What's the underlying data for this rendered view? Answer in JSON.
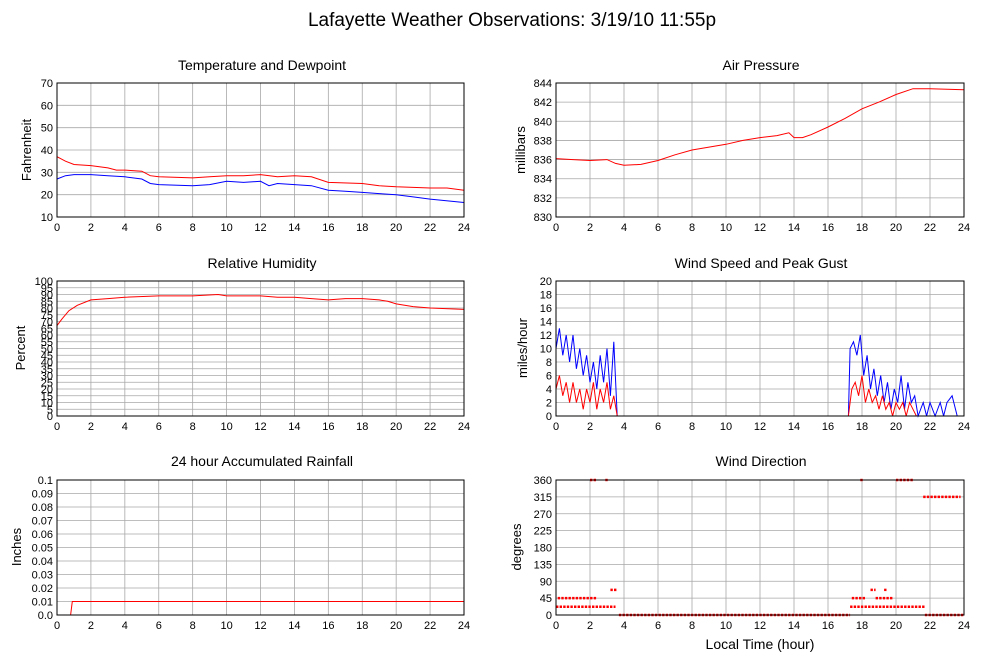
{
  "page": {
    "title": "Lafayette Weather Observations: 3/19/10 11:55p",
    "xlabel": "Local Time (hour)"
  },
  "chart_data": [
    {
      "id": "temp",
      "type": "line",
      "title": "Temperature and Dewpoint",
      "ylabel": "Fahrenheit",
      "xlim": [
        0,
        24
      ],
      "ylim": [
        10,
        70
      ],
      "yticks": [
        10,
        20,
        30,
        40,
        50,
        60,
        70
      ],
      "xticks": [
        0,
        2,
        4,
        6,
        8,
        10,
        12,
        14,
        16,
        18,
        20,
        22,
        24
      ],
      "grid": true,
      "series": [
        {
          "color": "#ff0000",
          "points": [
            [
              0,
              37
            ],
            [
              0.5,
              35
            ],
            [
              1,
              33.5
            ],
            [
              2,
              33
            ],
            [
              3,
              32
            ],
            [
              3.5,
              31
            ],
            [
              4,
              31
            ],
            [
              5,
              30.5
            ],
            [
              5.5,
              28.5
            ],
            [
              6,
              28
            ],
            [
              8,
              27.5
            ],
            [
              9,
              28
            ],
            [
              10,
              28.5
            ],
            [
              11,
              28.5
            ],
            [
              12,
              29
            ],
            [
              13,
              28
            ],
            [
              14,
              28.5
            ],
            [
              15,
              28
            ],
            [
              16,
              25.5
            ],
            [
              18,
              25
            ],
            [
              19,
              24
            ],
            [
              20,
              23.5
            ],
            [
              22,
              23
            ],
            [
              23,
              23
            ],
            [
              24,
              22
            ]
          ]
        },
        {
          "color": "#0000ff",
          "points": [
            [
              0,
              27
            ],
            [
              0.5,
              28.5
            ],
            [
              1,
              29
            ],
            [
              2,
              29
            ],
            [
              3,
              28.5
            ],
            [
              4,
              28
            ],
            [
              5,
              27
            ],
            [
              5.5,
              25
            ],
            [
              6,
              24.5
            ],
            [
              8,
              24
            ],
            [
              9,
              24.5
            ],
            [
              10,
              26
            ],
            [
              11,
              25.5
            ],
            [
              12,
              26
            ],
            [
              12.5,
              24
            ],
            [
              13,
              25
            ],
            [
              15,
              24
            ],
            [
              16,
              22
            ],
            [
              17,
              21.5
            ],
            [
              18,
              21
            ],
            [
              19,
              20.5
            ],
            [
              20,
              20
            ],
            [
              21,
              19
            ],
            [
              22,
              18
            ],
            [
              24,
              16.5
            ]
          ]
        }
      ]
    },
    {
      "id": "pressure",
      "type": "line",
      "title": "Air Pressure",
      "ylabel": "millibars",
      "xlim": [
        0,
        24
      ],
      "ylim": [
        830,
        844
      ],
      "yticks": [
        830,
        832,
        834,
        836,
        838,
        840,
        842,
        844
      ],
      "xticks": [
        0,
        2,
        4,
        6,
        8,
        10,
        12,
        14,
        16,
        18,
        20,
        22,
        24
      ],
      "grid": true,
      "series": [
        {
          "color": "#ff0000",
          "points": [
            [
              0,
              836.1
            ],
            [
              1,
              836
            ],
            [
              2,
              835.9
            ],
            [
              3,
              836
            ],
            [
              3.5,
              835.6
            ],
            [
              4,
              835.4
            ],
            [
              5,
              835.5
            ],
            [
              6,
              835.9
            ],
            [
              7,
              836.5
            ],
            [
              8,
              837
            ],
            [
              9,
              837.3
            ],
            [
              10,
              837.6
            ],
            [
              11,
              838
            ],
            [
              12,
              838.3
            ],
            [
              13,
              838.5
            ],
            [
              13.7,
              838.8
            ],
            [
              14,
              838.3
            ],
            [
              14.5,
              838.3
            ],
            [
              15,
              838.6
            ],
            [
              16,
              839.4
            ],
            [
              17,
              840.3
            ],
            [
              18,
              841.3
            ],
            [
              19,
              842
            ],
            [
              20,
              842.8
            ],
            [
              21,
              843.4
            ],
            [
              22,
              843.4
            ],
            [
              24,
              843.3
            ]
          ]
        }
      ]
    },
    {
      "id": "humidity",
      "type": "line",
      "title": "Relative Humidity",
      "ylabel": "Percent",
      "xlim": [
        0,
        24
      ],
      "ylim": [
        0,
        100
      ],
      "yticks": [
        0,
        5,
        10,
        15,
        20,
        25,
        30,
        35,
        40,
        45,
        50,
        55,
        60,
        65,
        70,
        75,
        80,
        85,
        90,
        95,
        100
      ],
      "xticks": [
        0,
        2,
        4,
        6,
        8,
        10,
        12,
        14,
        16,
        18,
        20,
        22,
        24
      ],
      "grid": true,
      "series": [
        {
          "color": "#ff0000",
          "points": [
            [
              0,
              67
            ],
            [
              0.3,
              72
            ],
            [
              0.7,
              78
            ],
            [
              1.2,
              82
            ],
            [
              2,
              86
            ],
            [
              3,
              87
            ],
            [
              4,
              88
            ],
            [
              6,
              89
            ],
            [
              8,
              89
            ],
            [
              9.5,
              90
            ],
            [
              10,
              89
            ],
            [
              12,
              89
            ],
            [
              13,
              88
            ],
            [
              14,
              88
            ],
            [
              15,
              87
            ],
            [
              16,
              86
            ],
            [
              17,
              87
            ],
            [
              18,
              87
            ],
            [
              19,
              86
            ],
            [
              19.5,
              85
            ],
            [
              20,
              83
            ],
            [
              21,
              81
            ],
            [
              22,
              80
            ],
            [
              24,
              79
            ]
          ]
        }
      ]
    },
    {
      "id": "wind",
      "type": "line",
      "title": "Wind Speed and Peak Gust",
      "ylabel": "miles/hour",
      "xlim": [
        0,
        24
      ],
      "ylim": [
        0,
        20
      ],
      "yticks": [
        0,
        2,
        4,
        6,
        8,
        10,
        12,
        14,
        16,
        18,
        20
      ],
      "xticks": [
        0,
        2,
        4,
        6,
        8,
        10,
        12,
        14,
        16,
        18,
        20,
        22,
        24
      ],
      "grid": true,
      "series": [
        {
          "color": "#0000ff",
          "points": [
            [
              0,
              10
            ],
            [
              0.2,
              13
            ],
            [
              0.4,
              9
            ],
            [
              0.6,
              12
            ],
            [
              0.8,
              8
            ],
            [
              1,
              12
            ],
            [
              1.2,
              7
            ],
            [
              1.4,
              10
            ],
            [
              1.6,
              6
            ],
            [
              1.8,
              9
            ],
            [
              2,
              5
            ],
            [
              2.2,
              8
            ],
            [
              2.4,
              4
            ],
            [
              2.6,
              9
            ],
            [
              2.8,
              5
            ],
            [
              3,
              10
            ],
            [
              3.2,
              3
            ],
            [
              3.4,
              11
            ],
            [
              3.6,
              0
            ],
            [
              4,
              0
            ],
            [
              10,
              0
            ],
            [
              17.2,
              0
            ],
            [
              17.3,
              10
            ],
            [
              17.5,
              11
            ],
            [
              17.7,
              9
            ],
            [
              17.9,
              12
            ],
            [
              18.1,
              6
            ],
            [
              18.3,
              9
            ],
            [
              18.5,
              4
            ],
            [
              18.7,
              7
            ],
            [
              18.9,
              3
            ],
            [
              19.1,
              6
            ],
            [
              19.3,
              2
            ],
            [
              19.5,
              5
            ],
            [
              19.7,
              1
            ],
            [
              19.9,
              4
            ],
            [
              20.1,
              2
            ],
            [
              20.3,
              6
            ],
            [
              20.5,
              1
            ],
            [
              20.7,
              5
            ],
            [
              20.9,
              2
            ],
            [
              21.1,
              3
            ],
            [
              21.3,
              0
            ],
            [
              21.6,
              2
            ],
            [
              21.8,
              0
            ],
            [
              22,
              2
            ],
            [
              22.3,
              0
            ],
            [
              22.6,
              2
            ],
            [
              22.8,
              0
            ],
            [
              23,
              2
            ],
            [
              23.3,
              3
            ],
            [
              23.6,
              0
            ]
          ]
        },
        {
          "color": "#ff0000",
          "points": [
            [
              0,
              4
            ],
            [
              0.2,
              6
            ],
            [
              0.4,
              3
            ],
            [
              0.6,
              5
            ],
            [
              0.8,
              2
            ],
            [
              1,
              5
            ],
            [
              1.2,
              2
            ],
            [
              1.4,
              4
            ],
            [
              1.6,
              1
            ],
            [
              1.8,
              4
            ],
            [
              2,
              2
            ],
            [
              2.2,
              5
            ],
            [
              2.4,
              1
            ],
            [
              2.6,
              4
            ],
            [
              2.8,
              2
            ],
            [
              3,
              5
            ],
            [
              3.2,
              1
            ],
            [
              3.4,
              3
            ],
            [
              3.6,
              0
            ],
            [
              17.2,
              0
            ],
            [
              17.4,
              4
            ],
            [
              17.6,
              5
            ],
            [
              17.8,
              3
            ],
            [
              18,
              6
            ],
            [
              18.2,
              2
            ],
            [
              18.4,
              4
            ],
            [
              18.6,
              2
            ],
            [
              18.8,
              3
            ],
            [
              19,
              1
            ],
            [
              19.2,
              3
            ],
            [
              19.4,
              1
            ],
            [
              19.6,
              2
            ],
            [
              19.8,
              0
            ],
            [
              20,
              2
            ],
            [
              20.2,
              1
            ],
            [
              20.4,
              2
            ],
            [
              20.6,
              0
            ],
            [
              20.8,
              2
            ],
            [
              21,
              1
            ],
            [
              21.2,
              0
            ],
            [
              21.5,
              0
            ]
          ]
        }
      ]
    },
    {
      "id": "rain",
      "type": "line",
      "title": "24 hour Accumulated Rainfall",
      "ylabel": "Inches",
      "xlim": [
        0,
        24
      ],
      "ylim": [
        0,
        0.1
      ],
      "yticks": [
        "0.0",
        "0.01",
        "0.02",
        "0.03",
        "0.04",
        "0.05",
        "0.06",
        "0.07",
        "0.08",
        "0.09",
        "0.1"
      ],
      "xticks": [
        0,
        2,
        4,
        6,
        8,
        10,
        12,
        14,
        16,
        18,
        20,
        22,
        24
      ],
      "grid": true,
      "series": [
        {
          "color": "#ff0000",
          "points": [
            [
              0,
              0
            ],
            [
              0.8,
              0
            ],
            [
              0.9,
              0.01
            ],
            [
              24,
              0.01
            ]
          ]
        }
      ]
    },
    {
      "id": "direction",
      "type": "scatter",
      "title": "Wind Direction",
      "ylabel": "degrees",
      "xlim": [
        0,
        24
      ],
      "ylim": [
        0,
        360
      ],
      "yticks": [
        0,
        45,
        90,
        135,
        180,
        225,
        270,
        315,
        360
      ],
      "xticks": [
        0,
        2,
        4,
        6,
        8,
        10,
        12,
        14,
        16,
        18,
        20,
        22,
        24
      ],
      "grid": true,
      "segments": [
        {
          "color": "#ff0000",
          "y": 45,
          "x": [
            0.1,
            2.4
          ]
        },
        {
          "color": "#ff0000",
          "y": 22,
          "x": [
            0,
            3.5
          ]
        },
        {
          "color": "#ff0000",
          "y": 67,
          "x": [
            3.2,
            3.6
          ]
        },
        {
          "color": "#ff0000",
          "y": 360,
          "x": [
            2.0,
            2.4
          ]
        },
        {
          "color": "#ff0000",
          "y": 360,
          "x": [
            2.9,
            3.1
          ]
        },
        {
          "color": "#ff0000",
          "y": 0,
          "x": [
            3.7,
            17.3
          ]
        },
        {
          "color": "#ff0000",
          "y": 22,
          "x": [
            17.3,
            21.7
          ]
        },
        {
          "color": "#ff0000",
          "y": 45,
          "x": [
            17.4,
            18.2
          ]
        },
        {
          "color": "#ff0000",
          "y": 45,
          "x": [
            18.8,
            19.8
          ]
        },
        {
          "color": "#ff0000",
          "y": 67,
          "x": [
            18.5,
            18.8
          ]
        },
        {
          "color": "#ff0000",
          "y": 67,
          "x": [
            19.3,
            19.5
          ]
        },
        {
          "color": "#ff0000",
          "y": 360,
          "x": [
            17.9,
            18.1
          ]
        },
        {
          "color": "#ff0000",
          "y": 360,
          "x": [
            20.0,
            21.0
          ]
        },
        {
          "color": "#ff0000",
          "y": 315,
          "x": [
            21.6,
            23.8
          ]
        },
        {
          "color": "#ff0000",
          "y": 0,
          "x": [
            21.7,
            24
          ]
        }
      ]
    }
  ]
}
